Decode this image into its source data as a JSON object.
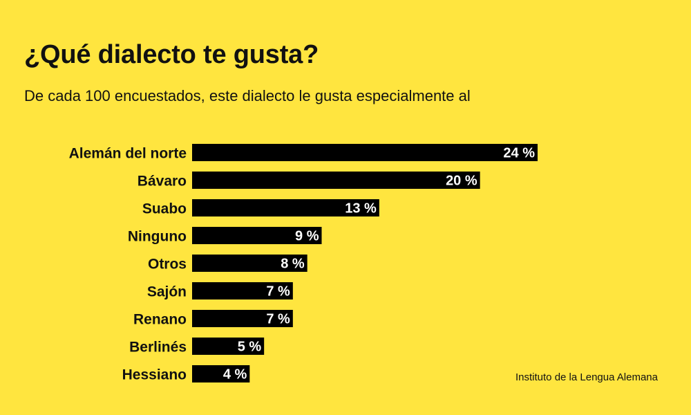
{
  "title": "¿Qué dialecto te gusta?",
  "subtitle": "De cada 100 encuestados, este dialecto le gusta especialmente al",
  "source": "Instituto de la Lengua Alemana",
  "colors": {
    "background": "#FFE53F",
    "bar": "#000000",
    "bar_label": "#FFFFFF"
  },
  "chart_data": {
    "type": "bar",
    "orientation": "horizontal",
    "categories": [
      "Alemán del norte",
      "Bávaro",
      "Suabo",
      "Ninguno",
      "Otros",
      "Sajón",
      "Renano",
      "Berlinés",
      "Hessiano"
    ],
    "values": [
      24,
      20,
      13,
      9,
      8,
      7,
      7,
      5,
      4
    ],
    "value_labels": [
      "24 %",
      "20 %",
      "13 %",
      "9 %",
      "8 %",
      "7 %",
      "7 %",
      "5 %",
      "4 %"
    ],
    "unit": "%",
    "xlim": [
      0,
      24
    ],
    "grid": false,
    "legend": "none"
  }
}
